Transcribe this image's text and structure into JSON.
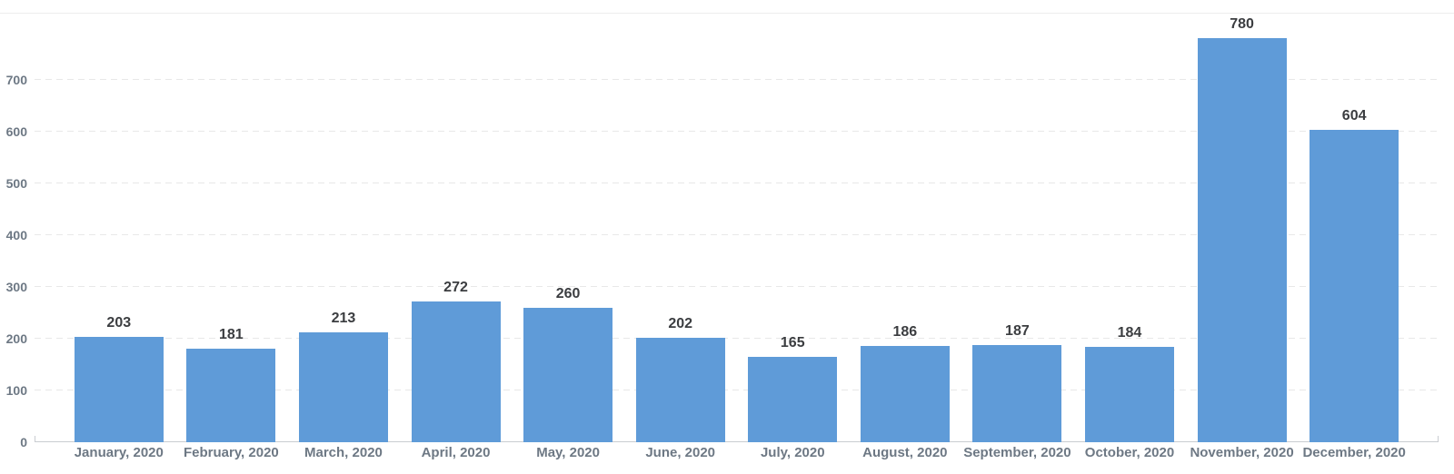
{
  "chart_data": {
    "type": "bar",
    "title": "",
    "xlabel": "",
    "ylabel": "",
    "categories": [
      "January, 2020",
      "February, 2020",
      "March, 2020",
      "April, 2020",
      "May, 2020",
      "June, 2020",
      "July, 2020",
      "August, 2020",
      "September, 2020",
      "October, 2020",
      "November, 2020",
      "December, 2020"
    ],
    "values": [
      203,
      181,
      213,
      272,
      260,
      202,
      165,
      186,
      187,
      184,
      780,
      604
    ],
    "value_labels_shown": true,
    "y_ticks": [
      0,
      100,
      200,
      300,
      400,
      500,
      600,
      700
    ],
    "ylim": [
      0,
      828
    ],
    "grid": "horizontal-dashed",
    "legend": "none"
  },
  "colors": {
    "bar": "#5f9bd8",
    "value_label": "#3b3d40",
    "axis_text": "#6d7884",
    "gridline": "#e8e8e8",
    "baseline": "#c9ccd1",
    "top_border": "#ededed",
    "background": "#ffffff"
  }
}
